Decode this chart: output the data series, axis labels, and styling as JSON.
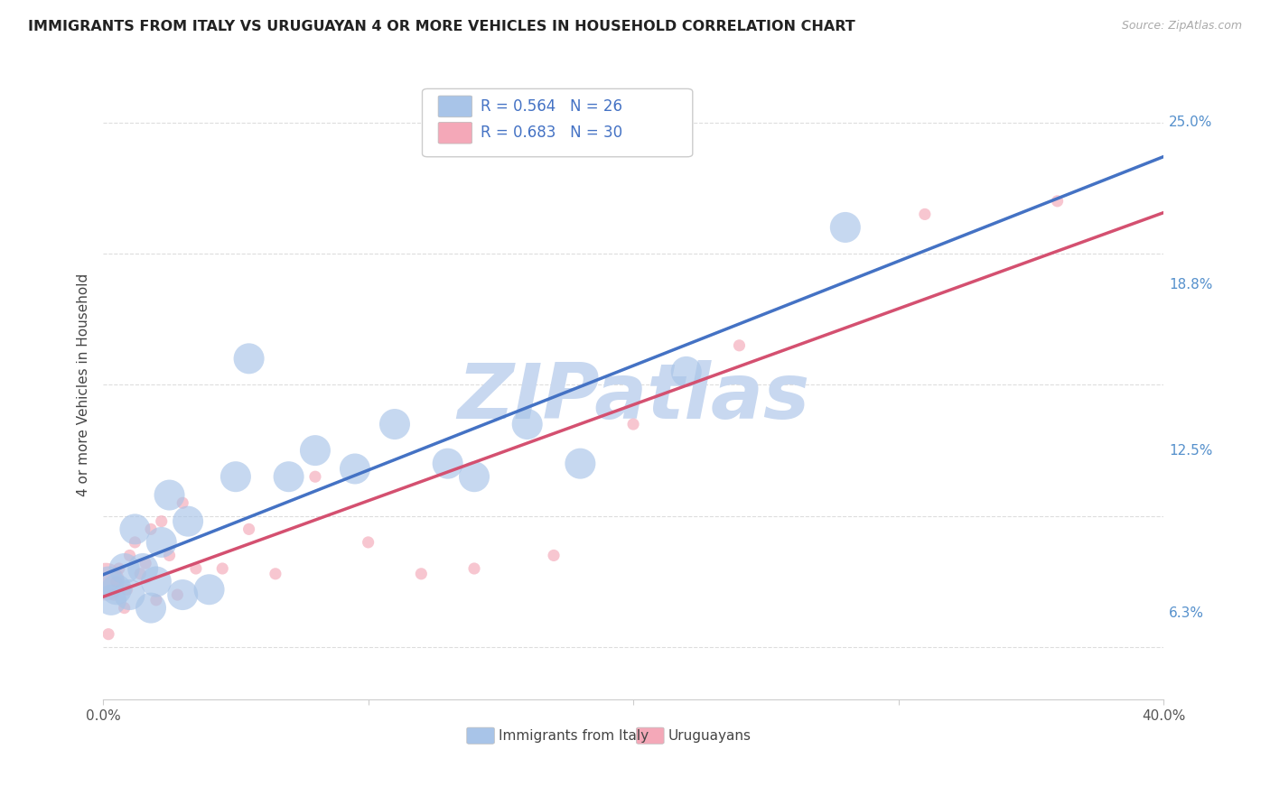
{
  "title": "IMMIGRANTS FROM ITALY VS URUGUAYAN 4 OR MORE VEHICLES IN HOUSEHOLD CORRELATION CHART",
  "source": "Source: ZipAtlas.com",
  "ylabel": "4 or more Vehicles in Household",
  "ytick_labels": [
    "6.3%",
    "12.5%",
    "18.8%",
    "25.0%"
  ],
  "ytick_values": [
    6.3,
    12.5,
    18.8,
    25.0
  ],
  "xlim": [
    0.0,
    40.0
  ],
  "ylim": [
    3.0,
    27.0
  ],
  "legend_italy_r": "R = 0.564",
  "legend_italy_n": "N = 26",
  "legend_uruguay_r": "R = 0.683",
  "legend_uruguay_n": "N = 30",
  "color_italy": "#a8c4e8",
  "color_uruguay": "#f4a8b8",
  "line_color_italy": "#4472c4",
  "line_color_uruguay": "#d45070",
  "line_color_italy_ext": "#a8c4e8",
  "watermark_color": "#c8d8f0",
  "italy_x": [
    0.2,
    0.3,
    0.5,
    0.8,
    1.0,
    1.2,
    1.5,
    1.8,
    2.0,
    2.2,
    2.5,
    3.0,
    3.2,
    4.0,
    5.0,
    5.5,
    7.0,
    8.0,
    9.5,
    11.0,
    13.0,
    14.0,
    16.0,
    18.0,
    22.0,
    28.0
  ],
  "italy_y": [
    7.5,
    6.8,
    7.2,
    8.0,
    7.0,
    9.5,
    8.0,
    6.5,
    7.5,
    9.0,
    10.8,
    7.0,
    9.8,
    7.2,
    11.5,
    16.0,
    11.5,
    12.5,
    11.8,
    13.5,
    12.0,
    11.5,
    13.5,
    12.0,
    15.5,
    21.0
  ],
  "italy_sizes": [
    30,
    30,
    30,
    30,
    30,
    30,
    30,
    30,
    30,
    30,
    30,
    30,
    30,
    30,
    30,
    30,
    30,
    30,
    30,
    30,
    30,
    30,
    30,
    30,
    30,
    30
  ],
  "uruguay_x": [
    0.1,
    0.2,
    0.4,
    0.5,
    0.6,
    0.8,
    0.9,
    1.0,
    1.2,
    1.4,
    1.6,
    1.8,
    2.0,
    2.2,
    2.5,
    2.8,
    3.0,
    3.5,
    4.5,
    5.5,
    6.5,
    8.0,
    10.0,
    12.0,
    14.0,
    17.0,
    20.0,
    24.0,
    31.0,
    36.0
  ],
  "uruguay_y": [
    7.5,
    5.5,
    7.0,
    7.5,
    8.0,
    6.5,
    7.2,
    8.5,
    9.0,
    7.8,
    8.2,
    9.5,
    6.8,
    9.8,
    8.5,
    7.0,
    10.5,
    8.0,
    8.0,
    9.5,
    7.8,
    11.5,
    9.0,
    7.8,
    8.0,
    8.5,
    13.5,
    16.5,
    21.5,
    22.0
  ],
  "uruguay_sizes_base": 30,
  "uruguay_size_large": 300,
  "background_color": "#ffffff",
  "grid_color": "#dddddd",
  "title_color": "#222222",
  "right_label_color": "#5590cc",
  "legend_text_color": "#4472c4"
}
